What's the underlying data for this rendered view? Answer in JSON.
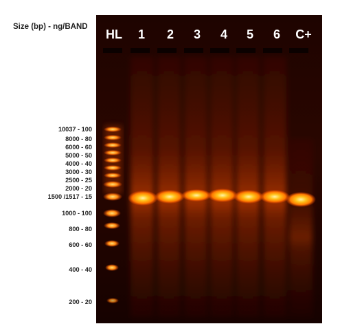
{
  "header": {
    "title": "Size (bp)  -  ng/BAND"
  },
  "ladder_labels": [
    "10037 - 100",
    "8000 - 80",
    "6000 - 60",
    "5000 - 50",
    "4000 - 40",
    "3000 - 30",
    "2500 - 25",
    "2000 - 20",
    "1500 /1517 - 15",
    "1000 - 100",
    "800 - 80",
    "600 - 60",
    "400 - 40",
    "200 - 20"
  ],
  "lanes": [
    {
      "label": "HL"
    },
    {
      "label": "1"
    },
    {
      "label": "2"
    },
    {
      "label": "3"
    },
    {
      "label": "4"
    },
    {
      "label": "5"
    },
    {
      "label": "6"
    },
    {
      "label": "C+"
    }
  ],
  "colors": {
    "gel_background": "#1a0300",
    "band_core": "#fff2a0",
    "band_glow": "#ff7a00"
  }
}
